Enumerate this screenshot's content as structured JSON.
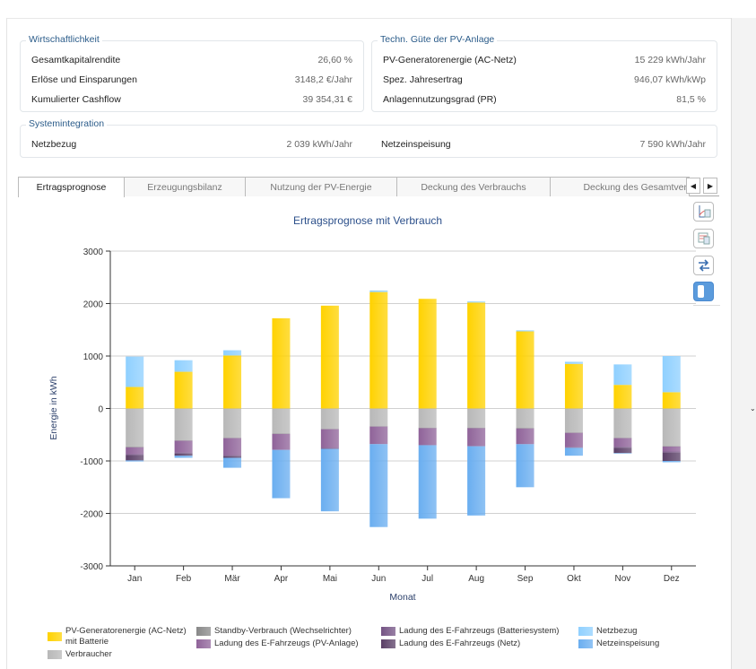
{
  "wirtschaftlichkeit": {
    "title": "Wirtschaftlichkeit",
    "rows": [
      {
        "label": "Gesamtkapitalrendite",
        "value": "26,60 %"
      },
      {
        "label": "Erlöse und Einsparungen",
        "value": "3148,2 €/Jahr"
      },
      {
        "label": "Kumulierter Cashflow",
        "value": "39 354,31 €"
      }
    ]
  },
  "technik": {
    "title": "Techn. Güte der PV-Anlage",
    "rows": [
      {
        "label": "PV-Generatorenergie (AC-Netz)",
        "value": "15 229 kWh/Jahr"
      },
      {
        "label": "Spez. Jahresertrag",
        "value": "946,07 kWh/kWp"
      },
      {
        "label": "Anlagennutzungsgrad (PR)",
        "value": "81,5 %"
      }
    ]
  },
  "system": {
    "title": "Systemintegration",
    "rows": [
      {
        "label": "Netzbezug",
        "value": "2 039 kWh/Jahr"
      },
      {
        "label": "Netzeinspeisung",
        "value": "7 590 kWh/Jahr"
      }
    ]
  },
  "tabs": [
    "Ertragsprognose",
    "Erzeugungsbilanz",
    "Nutzung der PV-Energie",
    "Deckung des Verbrauchs",
    "Deckung des Gesamtver"
  ],
  "tab_arrows": {
    "left": "◀",
    "right": "▶"
  },
  "chart_data": {
    "type": "bar",
    "stacked": true,
    "title": "Ertragsprognose mit Verbrauch",
    "xlabel": "Monat",
    "ylabel": "Energie in kWh",
    "ylim": [
      -3000,
      3000
    ],
    "yticks": [
      3000,
      2000,
      1000,
      0,
      -1000,
      -2000,
      -3000
    ],
    "ytick_labels": [
      "3000",
      "2000",
      "1000",
      "0",
      "-1000",
      "-2000",
      "-3000"
    ],
    "grid": true,
    "categories": [
      "Jan",
      "Feb",
      "Mär",
      "Apr",
      "Mai",
      "Jun",
      "Jul",
      "Aug",
      "Sep",
      "Okt",
      "Nov",
      "Dez"
    ],
    "series": [
      {
        "name": "PV-Generatorenergie (AC-Netz) mit Batterie",
        "color": "#ffd200",
        "values": [
          410,
          700,
          1010,
          1720,
          1960,
          2220,
          2090,
          2020,
          1470,
          850,
          450,
          310
        ]
      },
      {
        "name": "Netzbezug",
        "color": "#8fd0ff",
        "values": [
          580,
          220,
          100,
          0,
          0,
          30,
          0,
          20,
          20,
          40,
          390,
          690
        ]
      },
      {
        "name": "Verbraucher",
        "color": "#b8b8b8",
        "values": [
          -735,
          -610,
          -560,
          -480,
          -390,
          -340,
          -370,
          -370,
          -376,
          -460,
          -560,
          -720
        ]
      },
      {
        "name": "Standby-Verbrauch (Wechselrichter)",
        "color": "#888888",
        "values": [
          -5,
          -5,
          -5,
          -5,
          -5,
          -5,
          -5,
          -5,
          -5,
          -5,
          -5,
          -5
        ]
      },
      {
        "name": "Ladung des E-Fahrzeugs (PV-Anlage)",
        "color": "#8f6399",
        "values": [
          -130,
          -225,
          -325,
          -305,
          -355,
          -335,
          -325,
          -345,
          -300,
          -275,
          -165,
          -95
        ]
      },
      {
        "name": "Ladung des E-Fahrzeugs (Batteriesystem)",
        "color": "#745384",
        "values": [
          -20,
          -20,
          -20,
          0,
          -20,
          0,
          0,
          0,
          0,
          -10,
          -20,
          -20
        ]
      },
      {
        "name": "Ladung des E-Fahrzeugs (Netz)",
        "color": "#5a3f66",
        "values": [
          -100,
          -40,
          -30,
          0,
          0,
          0,
          0,
          0,
          0,
          0,
          -100,
          -160
        ]
      },
      {
        "name": "Netzeinspeisung",
        "color": "#6aaef0",
        "values": [
          -20,
          -40,
          -190,
          -920,
          -1190,
          -1580,
          -1400,
          -1320,
          -820,
          -150,
          -10,
          -25
        ]
      }
    ]
  },
  "legend": [
    {
      "label": "PV-Generatorenergie (AC-Netz) mit Batterie",
      "color": "#ffd200"
    },
    {
      "label": "Verbraucher",
      "color": "#b8b8b8"
    },
    {
      "label": "Standby-Verbrauch (Wechselrichter)",
      "color": "#888888"
    },
    {
      "label": "Ladung des E-Fahrzeugs (PV-Anlage)",
      "color": "#8f6399"
    },
    {
      "label": "Ladung des E-Fahrzeugs (Batteriesystem)",
      "color": "#745384"
    },
    {
      "label": "Ladung des E-Fahrzeugs (Netz)",
      "color": "#5a3f66"
    },
    {
      "label": "Netzbezug",
      "color": "#8fd0ff"
    },
    {
      "label": "Netzeinspeisung",
      "color": "#6aaef0"
    }
  ]
}
